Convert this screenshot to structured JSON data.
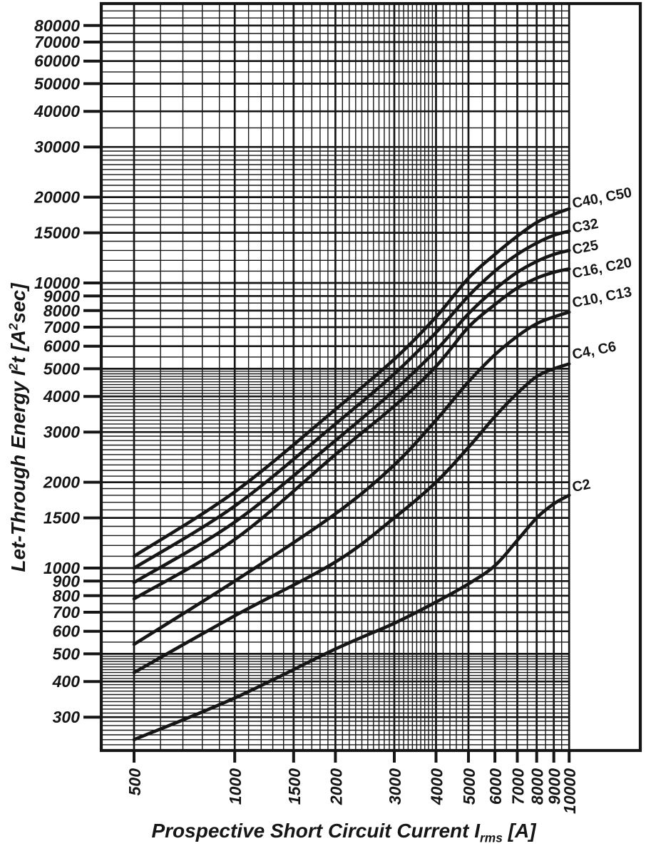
{
  "figure": {
    "background": "#ffffff",
    "ink_color": "#161616"
  },
  "chart_data": {
    "type": "line",
    "x_scale": "log",
    "y_scale": "log",
    "grid": "on",
    "x_axis": {
      "title_parts": [
        {
          "t": "Prospective Short Circuit Current I"
        },
        {
          "sub": "rms"
        },
        {
          "t": " [A]"
        }
      ],
      "range": [
        400,
        10000
      ],
      "major_ticks": [
        500,
        1000,
        1500,
        2000,
        3000,
        4000,
        5000,
        6000,
        7000,
        8000,
        9000,
        10000
      ],
      "minor_ticks": [
        600,
        700,
        800,
        900,
        1100,
        1200,
        1300,
        1400,
        1600,
        1700,
        1800,
        1900,
        2100,
        2200,
        2300,
        2400,
        2500,
        2600,
        2700,
        2800,
        2900,
        3100,
        3200,
        3300,
        3400,
        3500,
        3600,
        3700,
        3800,
        3900,
        4200,
        4400,
        4600,
        4800,
        5500,
        6500,
        7500,
        8500,
        9500
      ]
    },
    "y_axis": {
      "title_parts": [
        {
          "t": "Let-Through Energy I"
        },
        {
          "sup": "2"
        },
        {
          "t": "t [A"
        },
        {
          "sup": "2"
        },
        {
          "t": "sec]"
        }
      ],
      "range": [
        230,
        95000
      ],
      "major_ticks": [
        300,
        400,
        500,
        600,
        700,
        800,
        900,
        1000,
        1500,
        2000,
        3000,
        4000,
        5000,
        6000,
        7000,
        8000,
        9000,
        10000,
        15000,
        20000,
        30000,
        40000,
        50000,
        60000,
        70000,
        80000
      ],
      "minor_ticks": [
        240,
        250,
        260,
        270,
        280,
        290,
        310,
        320,
        330,
        340,
        350,
        360,
        370,
        380,
        390,
        410,
        420,
        430,
        440,
        450,
        460,
        470,
        480,
        490,
        550,
        650,
        750,
        850,
        950,
        1100,
        1200,
        1300,
        1400,
        1600,
        1700,
        1800,
        1900,
        2100,
        2200,
        2300,
        2400,
        2500,
        2600,
        2700,
        2800,
        2900,
        3100,
        3200,
        3300,
        3400,
        3500,
        3600,
        3700,
        3800,
        3900,
        4100,
        4200,
        4300,
        4400,
        4500,
        4600,
        4700,
        4800,
        4900,
        5500,
        6500,
        7500,
        8500,
        9500,
        11000,
        12000,
        13000,
        14000,
        16000,
        17000,
        18000,
        19000,
        21000,
        22000,
        23000,
        24000,
        25000,
        26000,
        27000,
        28000,
        29000,
        35000,
        45000,
        55000,
        65000,
        75000,
        85000,
        90000
      ]
    },
    "x_values": [
      500,
      1000,
      2000,
      3000,
      4000,
      5000,
      6000,
      7000,
      8000,
      9000,
      10000
    ],
    "series": [
      {
        "name": "C40, C50",
        "label_at_energy": 18300,
        "values": [
          1100,
          1850,
          3600,
          5400,
          7600,
          10400,
          12600,
          14600,
          16300,
          17400,
          18200
        ]
      },
      {
        "name": "C32",
        "label_at_energy": 15000,
        "values": [
          1000,
          1650,
          3200,
          4800,
          6700,
          9000,
          11000,
          12600,
          13800,
          14700,
          15200
        ]
      },
      {
        "name": "C25",
        "label_at_energy": 12600,
        "values": [
          890,
          1450,
          2800,
          4200,
          5800,
          7800,
          9500,
          10900,
          11900,
          12600,
          13000
        ]
      },
      {
        "name": "C16, C20",
        "label_at_energy": 10400,
        "values": [
          780,
          1260,
          2500,
          3700,
          5100,
          7000,
          8400,
          9600,
          10400,
          10900,
          11200
        ]
      },
      {
        "name": "C10, C13",
        "label_at_energy": 8200,
        "values": [
          540,
          900,
          1550,
          2300,
          3300,
          4500,
          5600,
          6500,
          7200,
          7600,
          7900
        ]
      },
      {
        "name": "C4, C6",
        "label_at_energy": 5400,
        "values": [
          430,
          680,
          1050,
          1500,
          2000,
          2650,
          3400,
          4100,
          4700,
          5000,
          5200
        ]
      },
      {
        "name": "C2",
        "label_at_energy": 1850,
        "values": [
          250,
          350,
          520,
          640,
          760,
          880,
          1020,
          1250,
          1500,
          1680,
          1800
        ]
      }
    ],
    "legend_position": "right-margin-labels"
  }
}
